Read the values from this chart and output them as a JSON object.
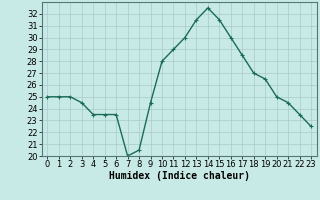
{
  "x": [
    0,
    1,
    2,
    3,
    4,
    5,
    6,
    7,
    8,
    9,
    10,
    11,
    12,
    13,
    14,
    15,
    16,
    17,
    18,
    19,
    20,
    21,
    22,
    23
  ],
  "y": [
    25.0,
    25.0,
    25.0,
    24.5,
    23.5,
    23.5,
    23.5,
    20.0,
    20.5,
    24.5,
    28.0,
    29.0,
    30.0,
    31.5,
    32.5,
    31.5,
    30.0,
    28.5,
    27.0,
    26.5,
    25.0,
    24.5,
    23.5,
    22.5
  ],
  "line_color": "#1a6b5a",
  "marker": "+",
  "marker_size": 3,
  "bg_color": "#c8eae6",
  "grid_color": "#aacaca",
  "xlabel": "Humidex (Indice chaleur)",
  "xlim": [
    -0.5,
    23.5
  ],
  "ylim": [
    20,
    33
  ],
  "yticks": [
    20,
    21,
    22,
    23,
    24,
    25,
    26,
    27,
    28,
    29,
    30,
    31,
    32
  ],
  "xtick_labels": [
    "0",
    "1",
    "2",
    "3",
    "4",
    "5",
    "6",
    "7",
    "8",
    "9",
    "10",
    "11",
    "12",
    "13",
    "14",
    "15",
    "16",
    "17",
    "18",
    "19",
    "20",
    "21",
    "22",
    "23"
  ],
  "xlabel_fontsize": 7,
  "tick_fontsize": 6,
  "line_width": 1.0
}
